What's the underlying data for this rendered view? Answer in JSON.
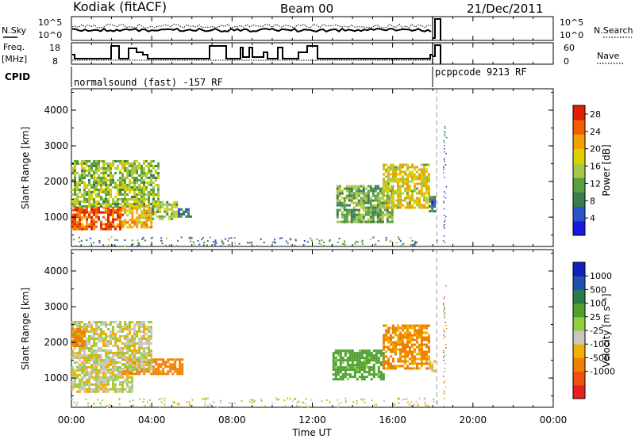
{
  "header": {
    "station": "Kodiak (fitACF)",
    "beam": "Beam 00",
    "date": "21/Dec/2011"
  },
  "panel_labels": {
    "nsky": "N.Sky",
    "nsearch": "N.Search",
    "freq": "Freq.",
    "freq_unit": "[MHz]",
    "nave": "Nave",
    "cpid": "CPID"
  },
  "top_ticks": {
    "nsky_left": [
      "10^5",
      "10^0"
    ],
    "nsearch_right": [
      "10^5",
      "10^0"
    ],
    "freq_left": [
      "18",
      "8"
    ],
    "nave_right": [
      "60",
      "0"
    ]
  },
  "cpid_segments": [
    {
      "label": "normalsound (fast) -157 RF",
      "start_hour": 0.0,
      "end_hour": 18.2
    },
    {
      "label": "pcppcode 9213 RF",
      "start_hour": 18.2,
      "end_hour": 24.0
    }
  ],
  "colorbars": {
    "power": {
      "title": "Power [dB]",
      "ticks": [
        "28",
        "24",
        "20",
        "16",
        "12",
        "8",
        "4"
      ]
    },
    "velocity": {
      "title": "Velocity [m s⁻¹]",
      "ticks": [
        "1000",
        "500",
        "100",
        "25",
        "-25",
        "-100",
        "-500",
        "-1000"
      ]
    }
  },
  "chart_data": [
    {
      "type": "heatmap",
      "name": "Power",
      "ylabel": "Slant Range [km]",
      "xlabel": "Time UT",
      "x_ticks": [
        "00:00",
        "04:00",
        "08:00",
        "12:00",
        "16:00",
        "20:00",
        "00:00"
      ],
      "y_ticks": [
        "1000",
        "2000",
        "3000",
        "4000"
      ],
      "xlim_hours": [
        0,
        24
      ],
      "ylim_km": [
        180,
        4600
      ],
      "colorbar": {
        "min": 0,
        "max": 30,
        "unit": "dB"
      },
      "regions": [
        {
          "t0": 0.0,
          "t1": 2.5,
          "r0": 650,
          "r1": 1300,
          "value": 26
        },
        {
          "t0": 2.5,
          "t1": 4.0,
          "r0": 700,
          "r1": 1350,
          "value": 20
        },
        {
          "t0": 4.0,
          "t1": 5.3,
          "r0": 950,
          "r1": 1450,
          "value": 14
        },
        {
          "t0": 5.3,
          "t1": 6.0,
          "r0": 1050,
          "r1": 1250,
          "value": 8
        },
        {
          "t0": 0.0,
          "t1": 4.3,
          "r0": 1300,
          "r1": 2600,
          "value": 14
        },
        {
          "t0": 13.2,
          "t1": 16.0,
          "r0": 900,
          "r1": 1900,
          "value": 12
        },
        {
          "t0": 15.5,
          "t1": 17.8,
          "r0": 1300,
          "r1": 2500,
          "value": 18
        },
        {
          "t0": 17.8,
          "t1": 18.1,
          "r0": 1200,
          "r1": 1600,
          "value": 8
        }
      ]
    },
    {
      "type": "heatmap",
      "name": "Velocity",
      "ylabel": "Slant Range [km]",
      "xlabel": "Time UT",
      "x_ticks": [
        "00:00",
        "04:00",
        "08:00",
        "12:00",
        "16:00",
        "20:00",
        "00:00"
      ],
      "y_ticks": [
        "1000",
        "2000",
        "3000",
        "4000"
      ],
      "xlim_hours": [
        0,
        24
      ],
      "ylim_km": [
        180,
        4600
      ],
      "colorbar": {
        "min": -1000,
        "max": 1000,
        "unit": "m s-1"
      },
      "regions": [
        {
          "t0": 0.0,
          "t1": 3.0,
          "r0": 650,
          "r1": 1250,
          "value": 0
        },
        {
          "t0": 2.5,
          "t1": 5.5,
          "r0": 1100,
          "r1": 1550,
          "value": -150
        },
        {
          "t0": 0.0,
          "t1": 4.0,
          "r0": 1250,
          "r1": 2600,
          "value": 0
        },
        {
          "t0": 0.0,
          "t1": 0.6,
          "r0": 1900,
          "r1": 2400,
          "value": -200
        },
        {
          "t0": 13.0,
          "t1": 15.5,
          "r0": 1000,
          "r1": 1800,
          "value": 150
        },
        {
          "t0": 15.5,
          "t1": 17.8,
          "r0": 1300,
          "r1": 2500,
          "value": -120
        },
        {
          "t0": 17.8,
          "t1": 18.1,
          "r0": 1200,
          "r1": 1500,
          "value": 0
        }
      ]
    }
  ]
}
